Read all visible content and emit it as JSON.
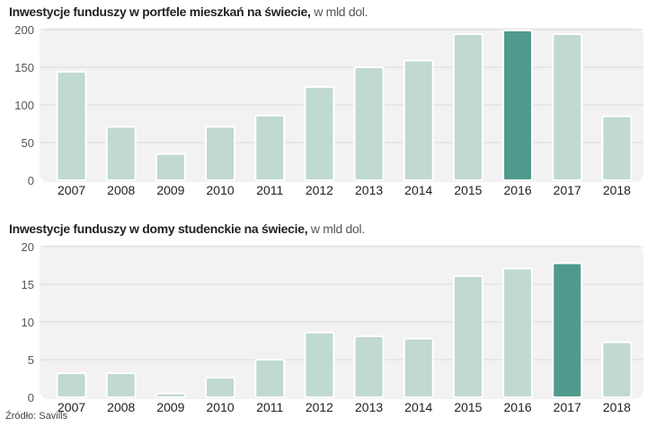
{
  "chart_data": [
    {
      "type": "bar",
      "title": "Inwestycje funduszy w portfele mieszkań na świecie,",
      "unit": "w mld dol.",
      "categories": [
        "2007",
        "2008",
        "2009",
        "2010",
        "2011",
        "2012",
        "2013",
        "2014",
        "2015",
        "2016",
        "2017",
        "2018"
      ],
      "values": [
        144,
        71,
        35,
        71,
        86,
        124,
        150,
        159,
        194,
        199,
        194,
        85
      ],
      "highlight": "2016",
      "ylim": [
        0,
        200
      ],
      "yticks": [
        0,
        50,
        100,
        150,
        200
      ],
      "grid": true,
      "colors": {
        "bar": "#c0d9d2",
        "highlight": "#4f9a8c",
        "plot_bg": "#f2f2f2"
      }
    },
    {
      "type": "bar",
      "title": "Inwestycje funduszy w domy studenckie na świecie,",
      "unit": "w mld dol.",
      "categories": [
        "2007",
        "2008",
        "2009",
        "2010",
        "2011",
        "2012",
        "2013",
        "2014",
        "2015",
        "2016",
        "2017",
        "2018"
      ],
      "values": [
        3.2,
        3.2,
        0.5,
        2.6,
        5.0,
        8.6,
        8.1,
        7.8,
        16.1,
        17.1,
        17.8,
        7.3
      ],
      "highlight": "2017",
      "ylim": [
        0,
        20
      ],
      "yticks": [
        0,
        5,
        10,
        15,
        20
      ],
      "grid": true,
      "colors": {
        "bar": "#c0d9d2",
        "highlight": "#4f9a8c",
        "plot_bg": "#f2f2f2"
      }
    }
  ],
  "source": "Źródło: Savills"
}
